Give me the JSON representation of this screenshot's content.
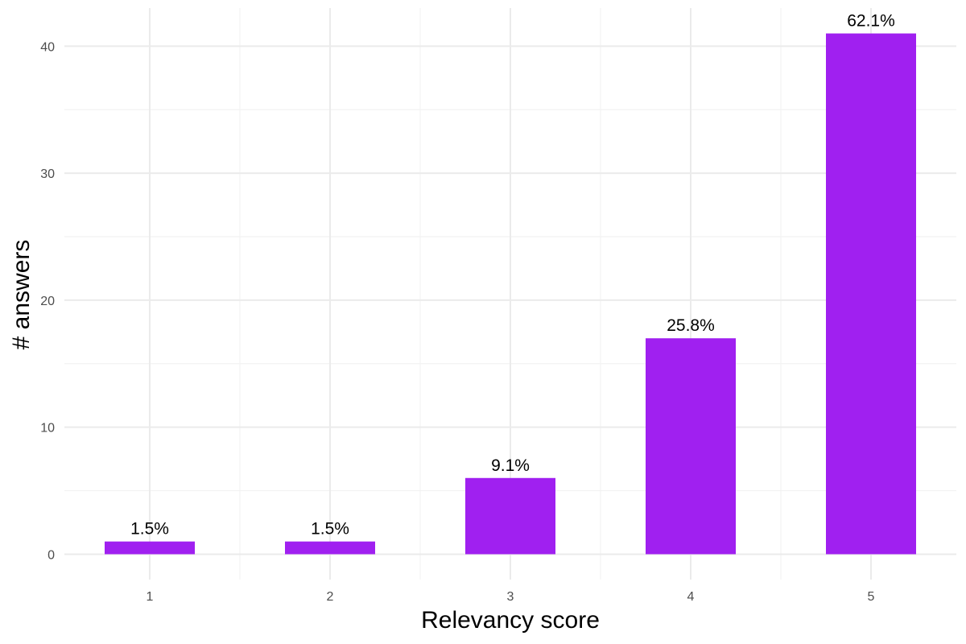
{
  "chart_data": {
    "type": "bar",
    "title": "",
    "xlabel": "Relevancy score",
    "ylabel": "# answers",
    "categories": [
      "1",
      "2",
      "3",
      "4",
      "5"
    ],
    "values": [
      1,
      1,
      6,
      17,
      41
    ],
    "labels": [
      "1.5%",
      "1.5%",
      "9.1%",
      "25.8%",
      "62.1%"
    ],
    "yticks": [
      0,
      10,
      20,
      30,
      40
    ],
    "ylim": [
      -2,
      43
    ],
    "grid": true,
    "bar_color": "#a020f0"
  }
}
